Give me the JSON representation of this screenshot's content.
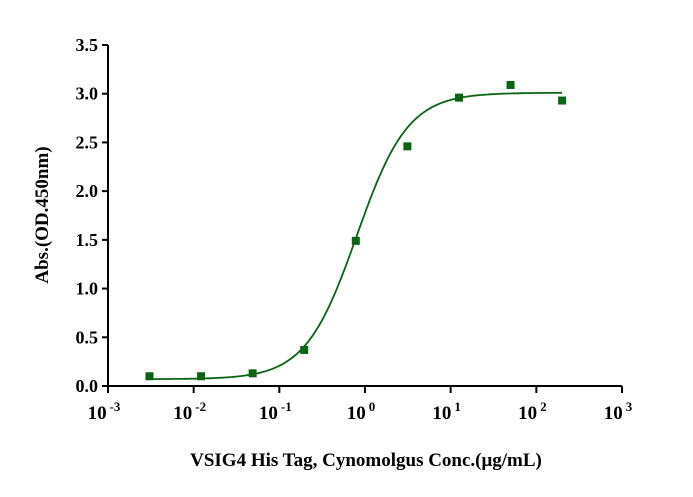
{
  "chart_data": {
    "type": "scatter",
    "title": "",
    "xlabel": "VSIG4 His Tag, Cynomolgus Conc.(μg/mL)",
    "ylabel": "Abs.(OD.450nm)",
    "xscale": "log10",
    "xlim_log10": [
      -3,
      3
    ],
    "ylim": [
      0,
      3.5
    ],
    "x_ticks": [
      {
        "base": "10",
        "exp": "-3"
      },
      {
        "base": "10",
        "exp": "-2"
      },
      {
        "base": "10",
        "exp": "-1"
      },
      {
        "base": "10",
        "exp": "0"
      },
      {
        "base": "10",
        "exp": "1"
      },
      {
        "base": "10",
        "exp": "2"
      },
      {
        "base": "10",
        "exp": "3"
      }
    ],
    "y_ticks": [
      "0.0",
      "0.5",
      "1.0",
      "1.5",
      "2.0",
      "2.5",
      "3.0",
      "3.5"
    ],
    "y_tick_values": [
      0,
      0.5,
      1.0,
      1.5,
      2.0,
      2.5,
      3.0,
      3.5
    ],
    "grid": false,
    "series": [
      {
        "name": "VSIG4 His Tag, Cynomolgus",
        "color": "#0a6414",
        "marker": "square",
        "x": [
          0.00305,
          0.0122,
          0.0488,
          0.195,
          0.781,
          3.125,
          12.5,
          50,
          200
        ],
        "y": [
          0.1,
          0.1,
          0.13,
          0.37,
          1.49,
          2.46,
          2.96,
          3.09,
          2.93
        ]
      }
    ],
    "fit": {
      "model": "4PL",
      "bottom": 0.07,
      "top": 3.01,
      "ec50": 0.8,
      "hill": 1.45,
      "x_range": [
        0.00305,
        200
      ],
      "color": "#0a6414"
    }
  }
}
